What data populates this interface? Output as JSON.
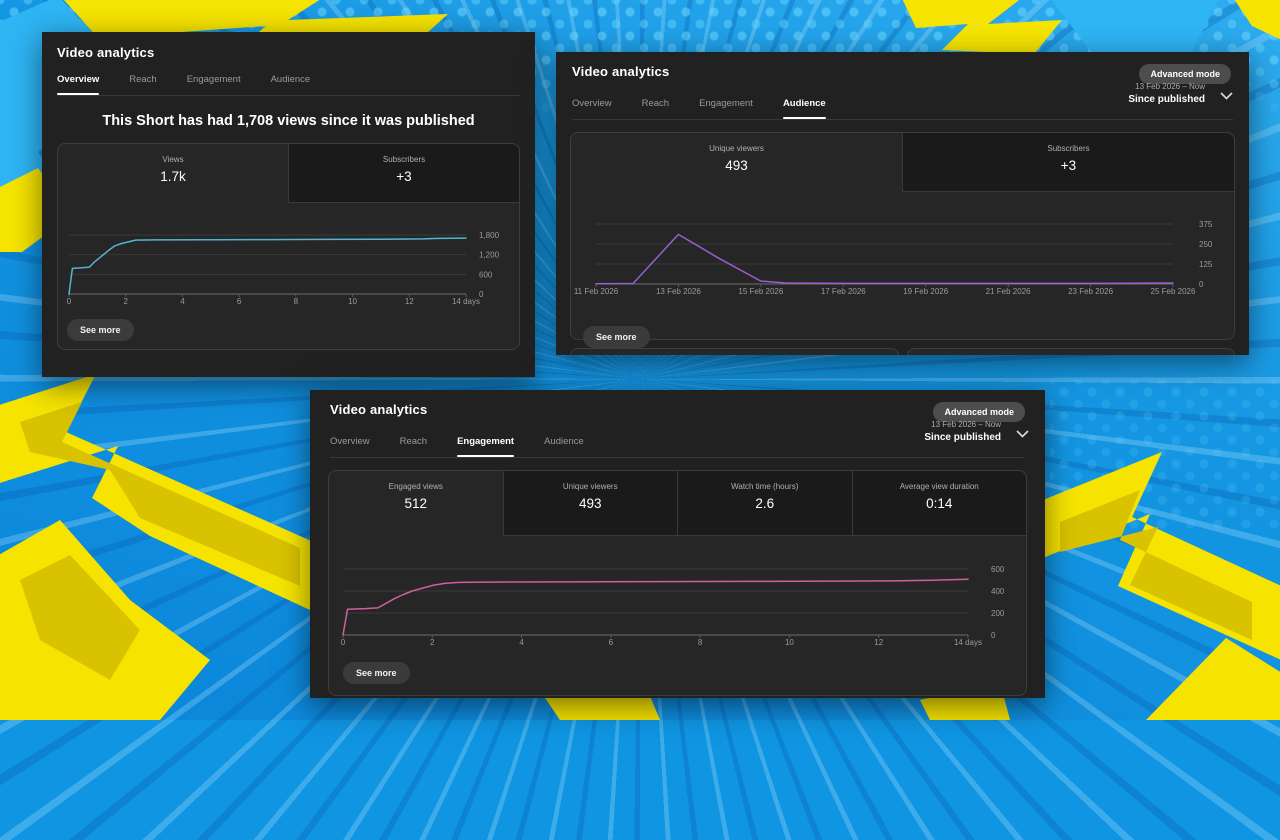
{
  "background": {
    "base_color": "#1496e2",
    "dot_color": "#6ed7ff",
    "bolt_yellow": "#f6e400",
    "bolt_yellow_shade": "#d9c200",
    "bolt_cyan": "#2fb4f4"
  },
  "icons": {
    "chevron_down": "chevron-down-icon"
  },
  "panels": [
    {
      "title": "Video analytics",
      "tabs": [
        {
          "label": "Overview",
          "active": true
        },
        {
          "label": "Reach",
          "active": false
        },
        {
          "label": "Engagement",
          "active": false
        },
        {
          "label": "Audience",
          "active": false
        }
      ],
      "headline": "This Short has had 1,708 views since it was published",
      "metrics": [
        {
          "label": "Views",
          "value": "1.7k",
          "active": true
        },
        {
          "label": "Subscribers",
          "value": "+3",
          "active": false
        }
      ],
      "see_more_label": "See more",
      "chart_data": {
        "type": "line",
        "series_name": "Views",
        "line_color": "#56b4d3",
        "xlabel": "days since published",
        "ylabel": "Views",
        "xlim": [
          0,
          14
        ],
        "ylim": [
          0,
          1800
        ],
        "y_gridlines": [
          {
            "value": 1800,
            "label": "1,800"
          },
          {
            "value": 1200,
            "label": "1,200"
          },
          {
            "value": 600,
            "label": "600"
          },
          {
            "value": 0,
            "label": "0"
          }
        ],
        "x_ticks": [
          {
            "value": 0,
            "label": "0"
          },
          {
            "value": 2,
            "label": "2"
          },
          {
            "value": 4,
            "label": "4"
          },
          {
            "value": 6,
            "label": "6"
          },
          {
            "value": 8,
            "label": "8"
          },
          {
            "value": 10,
            "label": "10"
          },
          {
            "value": 12,
            "label": "12"
          },
          {
            "value": 14,
            "label": "14 days"
          }
        ],
        "points": [
          [
            0,
            0
          ],
          [
            0.12,
            780
          ],
          [
            0.45,
            800
          ],
          [
            0.72,
            820
          ],
          [
            0.9,
            980
          ],
          [
            1.1,
            1120
          ],
          [
            1.35,
            1300
          ],
          [
            1.6,
            1460
          ],
          [
            1.85,
            1540
          ],
          [
            2.1,
            1590
          ],
          [
            2.35,
            1645
          ],
          [
            3,
            1650
          ],
          [
            5,
            1655
          ],
          [
            7,
            1660
          ],
          [
            9,
            1665
          ],
          [
            11,
            1672
          ],
          [
            12.5,
            1682
          ],
          [
            13,
            1695
          ],
          [
            13.5,
            1700
          ],
          [
            14,
            1705
          ]
        ]
      }
    },
    {
      "title": "Video analytics",
      "advanced_mode_label": "Advanced mode",
      "date_range": "13 Feb 2026 – Now",
      "period": "Since published",
      "tabs": [
        {
          "label": "Overview",
          "active": false
        },
        {
          "label": "Reach",
          "active": false
        },
        {
          "label": "Engagement",
          "active": false
        },
        {
          "label": "Audience",
          "active": true
        }
      ],
      "metrics": [
        {
          "label": "Unique viewers",
          "value": "493",
          "active": true
        },
        {
          "label": "Subscribers",
          "value": "+3",
          "active": false
        }
      ],
      "see_more_label": "See more",
      "chart_data": {
        "type": "line",
        "series_name": "Unique viewers",
        "line_color": "#9a5fd0",
        "xlabel": "date",
        "ylabel": "Unique viewers",
        "xlim": [
          11,
          25
        ],
        "ylim": [
          0,
          375
        ],
        "y_gridlines": [
          {
            "value": 375,
            "label": "375"
          },
          {
            "value": 250,
            "label": "250"
          },
          {
            "value": 125,
            "label": "125"
          },
          {
            "value": 0,
            "label": "0"
          }
        ],
        "x_ticks": [
          {
            "value": 11,
            "label": "11 Feb 2026"
          },
          {
            "value": 13,
            "label": "13 Feb 2026"
          },
          {
            "value": 15,
            "label": "15 Feb 2026"
          },
          {
            "value": 17,
            "label": "17 Feb 2026"
          },
          {
            "value": 19,
            "label": "19 Feb 2026"
          },
          {
            "value": 21,
            "label": "21 Feb 2026"
          },
          {
            "value": 23,
            "label": "23 Feb 2026"
          },
          {
            "value": 25,
            "label": "25 Feb 2026"
          }
        ],
        "points": [
          [
            11,
            2
          ],
          [
            11.9,
            3
          ],
          [
            13,
            310
          ],
          [
            14,
            158
          ],
          [
            15,
            18
          ],
          [
            15.6,
            6
          ],
          [
            17,
            4
          ],
          [
            18,
            4
          ],
          [
            19,
            4
          ],
          [
            20,
            4
          ],
          [
            21,
            4
          ],
          [
            22,
            4
          ],
          [
            23,
            4
          ],
          [
            24,
            5
          ],
          [
            25,
            6
          ]
        ]
      }
    },
    {
      "title": "Video analytics",
      "advanced_mode_label": "Advanced mode",
      "date_range": "13 Feb 2026 – Now",
      "period": "Since published",
      "tabs": [
        {
          "label": "Overview",
          "active": false
        },
        {
          "label": "Reach",
          "active": false
        },
        {
          "label": "Engagement",
          "active": true
        },
        {
          "label": "Audience",
          "active": false
        }
      ],
      "metrics": [
        {
          "label": "Engaged views",
          "value": "512",
          "active": true
        },
        {
          "label": "Unique viewers",
          "value": "493",
          "active": false
        },
        {
          "label": "Watch time (hours)",
          "value": "2.6",
          "active": false
        },
        {
          "label": "Average view duration",
          "value": "0:14",
          "active": false
        }
      ],
      "see_more_label": "See more",
      "chart_data": {
        "type": "line",
        "series_name": "Engaged views",
        "line_color": "#d05f9b",
        "xlabel": "days since published",
        "ylabel": "Engaged views",
        "xlim": [
          0,
          14
        ],
        "ylim": [
          0,
          600
        ],
        "y_gridlines": [
          {
            "value": 600,
            "label": "600"
          },
          {
            "value": 400,
            "label": "400"
          },
          {
            "value": 200,
            "label": "200"
          },
          {
            "value": 0,
            "label": "0"
          }
        ],
        "x_ticks": [
          {
            "value": 0,
            "label": "0"
          },
          {
            "value": 2,
            "label": "2"
          },
          {
            "value": 4,
            "label": "4"
          },
          {
            "value": 6,
            "label": "6"
          },
          {
            "value": 8,
            "label": "8"
          },
          {
            "value": 10,
            "label": "10"
          },
          {
            "value": 12,
            "label": "12"
          },
          {
            "value": 14,
            "label": "14 days"
          }
        ],
        "points": [
          [
            0,
            0
          ],
          [
            0.1,
            235
          ],
          [
            0.5,
            240
          ],
          [
            0.78,
            246
          ],
          [
            0.95,
            285
          ],
          [
            1.15,
            330
          ],
          [
            1.35,
            368
          ],
          [
            1.55,
            400
          ],
          [
            1.8,
            428
          ],
          [
            2.05,
            455
          ],
          [
            2.3,
            470
          ],
          [
            2.6,
            478
          ],
          [
            3.2,
            481
          ],
          [
            5,
            483
          ],
          [
            7,
            485
          ],
          [
            9,
            487
          ],
          [
            11,
            490
          ],
          [
            12.5,
            493
          ],
          [
            13.2,
            498
          ],
          [
            14,
            507
          ]
        ]
      }
    }
  ]
}
